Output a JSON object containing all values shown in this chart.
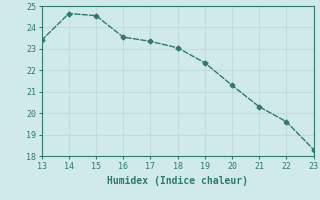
{
  "x": [
    13,
    14,
    15,
    16,
    17,
    18,
    19,
    20,
    21,
    22,
    23
  ],
  "y": [
    23.4,
    24.65,
    24.55,
    23.55,
    23.35,
    23.05,
    22.35,
    21.3,
    20.3,
    19.6,
    18.3
  ],
  "xlabel": "Humidex (Indice chaleur)",
  "xlim": [
    13,
    23
  ],
  "ylim": [
    18,
    25
  ],
  "yticks": [
    18,
    19,
    20,
    21,
    22,
    23,
    24,
    25
  ],
  "xticks": [
    13,
    14,
    15,
    16,
    17,
    18,
    19,
    20,
    21,
    22,
    23
  ],
  "line_color": "#2d7a6e",
  "bg_color": "#d0eaea",
  "grid_color": "#c0dcdc",
  "marker": "D",
  "markersize": 2.5,
  "linewidth": 1.0,
  "xlabel_fontsize": 7,
  "tick_fontsize": 6
}
